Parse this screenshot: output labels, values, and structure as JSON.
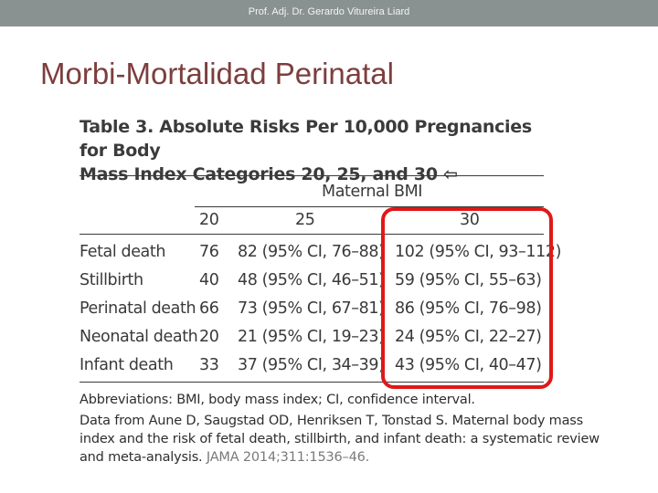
{
  "header": {
    "text": "Prof. Adj. Dr. Gerardo Vitureira Liard"
  },
  "slide": {
    "title": "Morbi-Mortalidad Perinatal"
  },
  "table": {
    "title_line1": "Table 3. Absolute Risks Per 10,000 Pregnancies for Body",
    "title_line2": "Mass Index Categories 20, 25, and 30 ⇦",
    "group_header": "Maternal BMI",
    "columns": [
      "20",
      "25",
      "30"
    ],
    "rows": [
      {
        "label": "Fetal death",
        "v20": "76",
        "v25": "82 (95% CI, 76–88)",
        "v30": "102 (95% CI, 93–112)"
      },
      {
        "label": "Stillbirth",
        "v20": "40",
        "v25": "48 (95% CI, 46–51)",
        "v30": "59 (95% CI, 55–63)"
      },
      {
        "label": "Perinatal death",
        "v20": "66",
        "v25": "73 (95% CI, 67–81)",
        "v30": "86 (95% CI, 76–98)"
      },
      {
        "label": "Neonatal death",
        "v20": "20",
        "v25": "21 (95% CI, 19–23)",
        "v30": "24 (95% CI, 22–27)"
      },
      {
        "label": "Infant death",
        "v20": "33",
        "v25": "37 (95% CI, 34–39)",
        "v30": "43 (95% CI, 40–47)"
      }
    ],
    "abbreviations": "Abbreviations: BMI, body mass index; CI, confidence interval.",
    "source_line1": "Data from Aune D, Saugstad OD, Henriksen T, Tonstad S. Maternal body mass",
    "source_line2": "index and the risk of fetal death, stillbirth, and infant death: a systematic review",
    "source_line3_text": "and meta-analysis.",
    "source_line3_journal": "JAMA 2014;311:1536–46.",
    "highlight_color": "#e01818"
  }
}
